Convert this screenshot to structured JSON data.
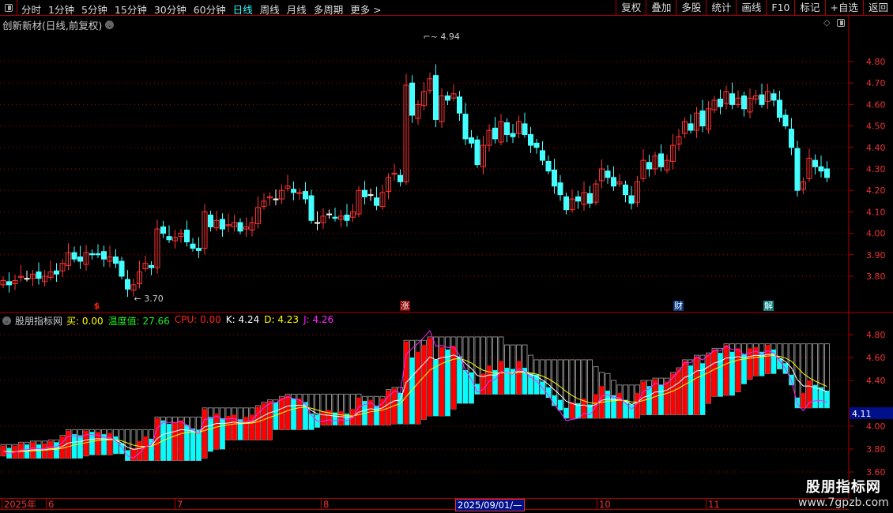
{
  "toolbar": {
    "periods": [
      "分时",
      "1分钟",
      "5分钟",
      "15分钟",
      "30分钟",
      "60分钟",
      "日线",
      "周线",
      "月线",
      "多周期",
      "更多 >"
    ],
    "active_period": "日线",
    "buttons": [
      "复权",
      "叠加",
      "多股",
      "统计",
      "画线",
      "F10",
      "标记",
      "+自选",
      "返回"
    ]
  },
  "chart_title": "创新新材(日线,前复权)",
  "price_axis": [
    "4.80",
    "4.70",
    "4.60",
    "4.50",
    "4.40",
    "4.30",
    "4.20",
    "4.10",
    "4.00",
    "3.90",
    "3.80"
  ],
  "annotations": {
    "high": "4.94",
    "low": "3.70"
  },
  "markers": [
    {
      "text": "$",
      "color": "#ff2020"
    },
    {
      "text": "涨",
      "color": "#8b0000"
    },
    {
      "text": "财",
      "color": "#0a3a80"
    },
    {
      "text": "解",
      "color": "#0a8080"
    }
  ],
  "indicator": {
    "name": "股朋指标网",
    "items": [
      {
        "label": "买: 0.00",
        "color": "#ffff00"
      },
      {
        "label": "温度值: 27.66",
        "color": "#22ee22"
      },
      {
        "label": "CPU: 0.00",
        "color": "#ff2020"
      },
      {
        "label": "K: 4.24",
        "color": "#ffffff"
      },
      {
        "label": "D: 4.23",
        "color": "#ffff00"
      },
      {
        "label": "J: 4.26",
        "color": "#ff22ff"
      }
    ],
    "axis": [
      "4.80",
      "4.60",
      "4.40",
      "4.00",
      "3.80",
      "3.60"
    ],
    "current": "4.11"
  },
  "time_axis": [
    {
      "label": "2025年"
    },
    {
      "label": "6"
    },
    {
      "label": "7"
    },
    {
      "label": "8"
    },
    {
      "label": "2025/09/01/—",
      "selected": true
    },
    {
      "label": "10"
    },
    {
      "label": "11"
    }
  ],
  "watermark": {
    "name": "股朋指标网",
    "url": "www.7gpzb.com"
  },
  "colors": {
    "up": "#ff3333",
    "down": "#44ffff",
    "grid": "#b00000",
    "k": "#ffffff",
    "d": "#ffff00",
    "j": "#ff22ff"
  },
  "closes": [
    3.78,
    3.76,
    3.78,
    3.8,
    3.79,
    3.81,
    3.79,
    3.8,
    3.82,
    3.81,
    3.86,
    3.91,
    3.88,
    3.87,
    3.91,
    3.9,
    3.9,
    3.88,
    3.89,
    3.86,
    3.8,
    3.74,
    3.76,
    3.82,
    3.86,
    3.84,
    4.02,
    4.0,
    3.97,
    3.98,
    4.0,
    3.96,
    3.93,
    3.92,
    4.1,
    4.03,
    4.06,
    4.02,
    4.04,
    4.05,
    4.01,
    4.03,
    4.05,
    4.12,
    4.15,
    4.17,
    4.16,
    4.2,
    4.22,
    4.19,
    4.19,
    4.16,
    4.06,
    4.05,
    4.08,
    4.09,
    4.07,
    4.08,
    4.06,
    4.1,
    4.2,
    4.17,
    4.18,
    4.13,
    4.19,
    4.26,
    4.28,
    4.24,
    4.69,
    4.55,
    4.6,
    4.66,
    4.72,
    4.53,
    4.64,
    4.62,
    4.65,
    4.56,
    4.44,
    4.42,
    4.32,
    4.41,
    4.48,
    4.44,
    4.52,
    4.46,
    4.45,
    4.52,
    4.46,
    4.41,
    4.4,
    4.34,
    4.29,
    4.22,
    4.18,
    4.11,
    4.16,
    4.15,
    4.19,
    4.14,
    4.23,
    4.3,
    4.26,
    4.22,
    4.24,
    4.18,
    4.14,
    4.24,
    4.34,
    4.3,
    4.36,
    4.31,
    4.34,
    4.41,
    4.45,
    4.52,
    4.48,
    4.56,
    4.5,
    4.58,
    4.62,
    4.59,
    4.66,
    4.6,
    4.63,
    4.58,
    4.63,
    4.64,
    4.6,
    4.66,
    4.62,
    4.54,
    4.5,
    4.4,
    4.2,
    4.24,
    4.35,
    4.31,
    4.29,
    4.26
  ]
}
